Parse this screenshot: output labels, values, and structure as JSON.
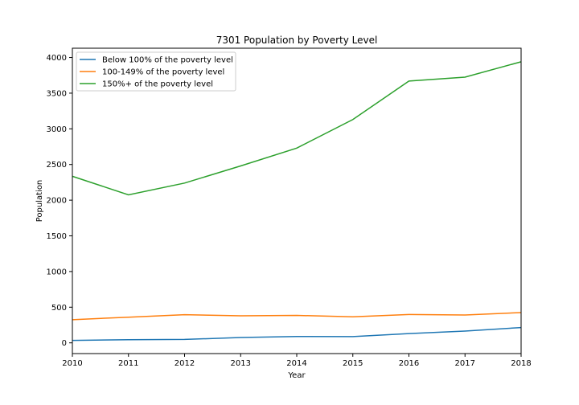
{
  "chart_data": {
    "type": "line",
    "title": "7301 Population by Poverty Level",
    "xlabel": "Year",
    "ylabel": "Population",
    "xlim": [
      2010,
      2018
    ],
    "ylim": [
      -150,
      4130
    ],
    "x": [
      2010,
      2011,
      2012,
      2013,
      2014,
      2015,
      2016,
      2017,
      2018
    ],
    "x_ticks": [
      2010,
      2011,
      2012,
      2013,
      2014,
      2015,
      2016,
      2017,
      2018
    ],
    "y_ticks": [
      0,
      500,
      1000,
      1500,
      2000,
      2500,
      3000,
      3500,
      4000
    ],
    "grid": false,
    "legend_position": "top-left",
    "series": [
      {
        "name": "Below 100% of the poverty level",
        "color": "#1f77b4",
        "values": [
          35,
          45,
          48,
          75,
          90,
          88,
          130,
          165,
          215
        ]
      },
      {
        "name": "100-149% of the poverty level",
        "color": "#ff7f0e",
        "values": [
          325,
          360,
          395,
          380,
          385,
          365,
          398,
          390,
          425
        ]
      },
      {
        "name": "150%+ of the poverty level",
        "color": "#2ca02c",
        "values": [
          2335,
          2075,
          2240,
          2480,
          2730,
          3130,
          3670,
          3725,
          3940
        ]
      }
    ]
  }
}
